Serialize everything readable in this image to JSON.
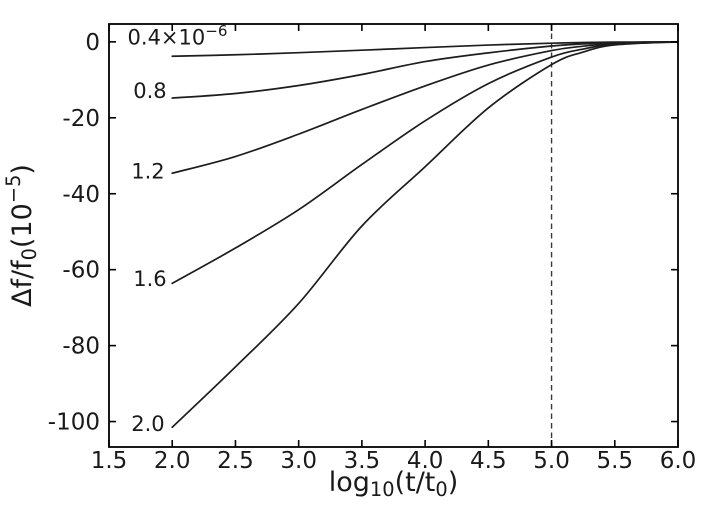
{
  "chart_data": {
    "type": "line",
    "title": "",
    "xlabel_parts": [
      {
        "t": "log"
      },
      {
        "t": "10",
        "sub": true
      },
      {
        "t": "(t/t"
      },
      {
        "t": "0",
        "sub": true
      },
      {
        "t": ")"
      }
    ],
    "ylabel_parts": [
      {
        "t": "Δf/f"
      },
      {
        "t": "0",
        "sub": true
      },
      {
        "t": "(10"
      },
      {
        "t": "−5",
        "sup": true
      },
      {
        "t": ")"
      }
    ],
    "xlim": [
      1.5,
      6.0
    ],
    "ylim": [
      -106.7,
      4.7
    ],
    "grid": false,
    "legend": "inline-curve-labels",
    "x_ticks": {
      "values": [
        1.5,
        2.0,
        2.5,
        3.0,
        3.5,
        4.0,
        4.5,
        5.0,
        5.5,
        6.0
      ],
      "labels": [
        "1.5",
        "2.0",
        "2.5",
        "3.0",
        "3.5",
        "4.0",
        "4.5",
        "5.0",
        "5.5",
        "6.0"
      ]
    },
    "y_ticks": {
      "values": [
        0,
        -20,
        -40,
        -60,
        -80,
        -100
      ],
      "labels": [
        "0",
        "-20",
        "-40",
        "-60",
        "-80",
        "-100"
      ]
    },
    "vline": {
      "x": 5.0,
      "style": "dashed"
    },
    "series": [
      {
        "name": "amplitude-0.4e-6",
        "label_parts": [
          {
            "t": "0.4×10"
          },
          {
            "t": "−6",
            "sup": true
          }
        ],
        "label_pos": [
          2.042,
          1.3
        ],
        "x": [
          2.0,
          2.5,
          3.0,
          3.5,
          4.0,
          4.5,
          5.0,
          5.25,
          5.5,
          6.0
        ],
        "y": [
          -3.8,
          -3.4,
          -2.85,
          -2.2,
          -1.5,
          -0.85,
          -0.35,
          -0.18,
          -0.08,
          0
        ]
      },
      {
        "name": "amplitude-0.8e-6",
        "label_parts": [
          {
            "t": "0.8"
          }
        ],
        "label_pos": [
          1.824,
          -12.9
        ],
        "x": [
          2.0,
          2.5,
          3.0,
          3.5,
          4.0,
          4.5,
          5.0,
          5.25,
          5.5,
          6.0
        ],
        "y": [
          -14.8,
          -13.6,
          -11.5,
          -8.6,
          -5.2,
          -2.9,
          -1.1,
          -0.55,
          -0.22,
          0
        ]
      },
      {
        "name": "amplitude-1.2e-6",
        "label_parts": [
          {
            "t": "1.2"
          }
        ],
        "label_pos": [
          1.808,
          -34.0
        ],
        "x": [
          2.0,
          2.5,
          3.0,
          3.5,
          4.0,
          4.5,
          5.0,
          5.25,
          5.5,
          6.0
        ],
        "y": [
          -34.6,
          -30.2,
          -24.3,
          -17.8,
          -11.6,
          -6.1,
          -2.3,
          -1.15,
          -0.4,
          0
        ]
      },
      {
        "name": "amplitude-1.6e-6",
        "label_parts": [
          {
            "t": "1.6"
          }
        ],
        "label_pos": [
          1.824,
          -62.4
        ],
        "x": [
          2.0,
          2.5,
          3.0,
          3.5,
          4.0,
          4.5,
          5.0,
          5.25,
          5.5,
          6.0
        ],
        "y": [
          -63.6,
          -54.3,
          -44.2,
          -32.3,
          -20.8,
          -11.0,
          -4.0,
          -1.9,
          -0.6,
          0
        ]
      },
      {
        "name": "amplitude-2.0e-6",
        "label_parts": [
          {
            "t": "2.0"
          }
        ],
        "label_pos": [
          1.808,
          -100.6
        ],
        "x": [
          2.0,
          2.5,
          3.0,
          3.5,
          4.0,
          4.5,
          5.0,
          5.25,
          5.5,
          6.0
        ],
        "y": [
          -101.5,
          -85.6,
          -68.9,
          -48.5,
          -32.9,
          -17.4,
          -6.0,
          -2.7,
          -0.8,
          0
        ]
      }
    ],
    "colors": {
      "curve": "#1d1d1d",
      "axis": "#000000",
      "text": "#1a1a1a",
      "vline": "#3a3a3a",
      "background": "#ffffff"
    }
  }
}
